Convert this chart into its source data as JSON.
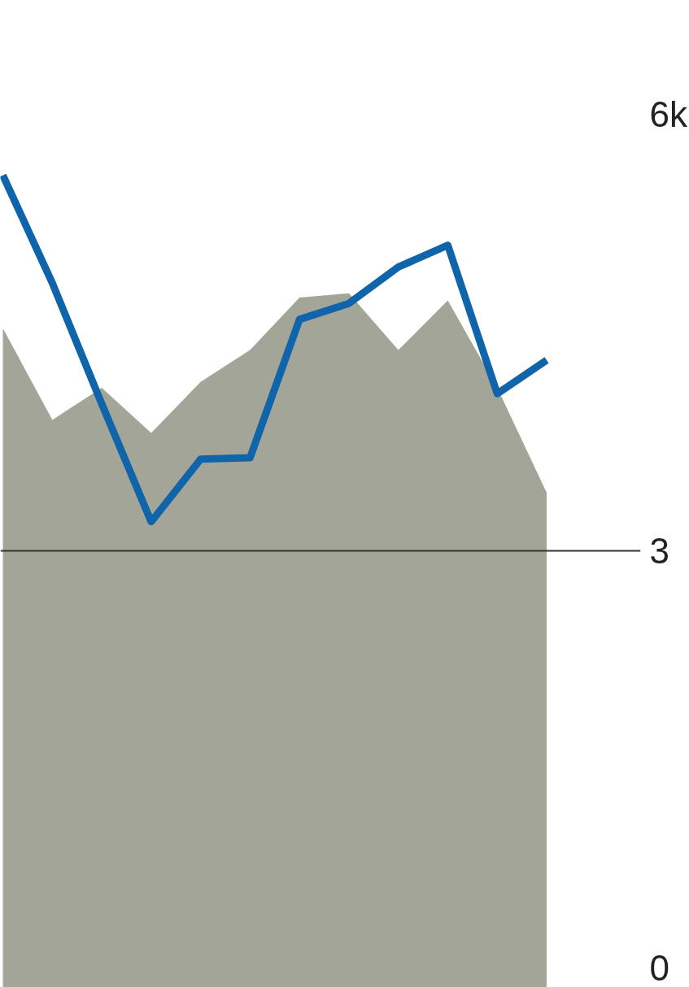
{
  "chart_data": {
    "type": "area",
    "categories": [
      null,
      null,
      null,
      null,
      null,
      null,
      null,
      null,
      null,
      null,
      null,
      null
    ],
    "series": [
      {
        "color": "#a3a598",
        "values": [
          4.53,
          3.9,
          4.12,
          3.81,
          4.16,
          4.38,
          4.74,
          4.77,
          4.38,
          4.72,
          4.12,
          3.4
        ]
      },
      {
        "type": "line",
        "color": "#0f64aa",
        "values": [
          5.58,
          4.84,
          4.01,
          3.2,
          3.63,
          3.64,
          4.59,
          4.7,
          4.95,
          5.1,
          4.08,
          4.31
        ]
      }
    ],
    "ylim": [
      0,
      6
    ],
    "yticks": [
      0,
      3,
      {
        "value": 6,
        "label": "6k"
      }
    ],
    "grid": "y",
    "marker": "none",
    "line_style": "solid"
  }
}
